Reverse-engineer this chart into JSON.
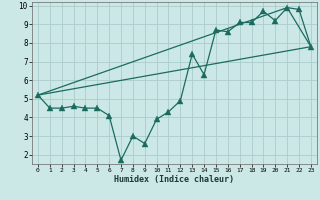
{
  "xlabel": "Humidex (Indice chaleur)",
  "xlim": [
    -0.5,
    23.5
  ],
  "ylim": [
    1.5,
    10.2
  ],
  "yticks": [
    2,
    3,
    4,
    5,
    6,
    7,
    8,
    9,
    10
  ],
  "xticks": [
    0,
    1,
    2,
    3,
    4,
    5,
    6,
    7,
    8,
    9,
    10,
    11,
    12,
    13,
    14,
    15,
    16,
    17,
    18,
    19,
    20,
    21,
    22,
    23
  ],
  "bg_color": "#cce8e6",
  "grid_color": "#aaccca",
  "line_color": "#1a6b5e",
  "line1_x": [
    0,
    1,
    2,
    3,
    4,
    5,
    6,
    7,
    8,
    9,
    10,
    11,
    12,
    13,
    14,
    15,
    16,
    17,
    18,
    19,
    20,
    21,
    22,
    23
  ],
  "line1_y": [
    5.2,
    4.5,
    4.5,
    4.6,
    4.5,
    4.5,
    4.1,
    1.7,
    3.0,
    2.6,
    3.9,
    4.3,
    4.9,
    7.4,
    6.3,
    8.7,
    8.6,
    9.1,
    9.1,
    9.7,
    9.2,
    9.9,
    9.8,
    7.8
  ],
  "line2_x": [
    0,
    23
  ],
  "line2_y": [
    5.2,
    7.8
  ],
  "line3_x": [
    0,
    21,
    23
  ],
  "line3_y": [
    5.2,
    9.9,
    7.8
  ],
  "markersize_main": 3.5,
  "markersize_tri": 4,
  "linewidth": 0.9
}
